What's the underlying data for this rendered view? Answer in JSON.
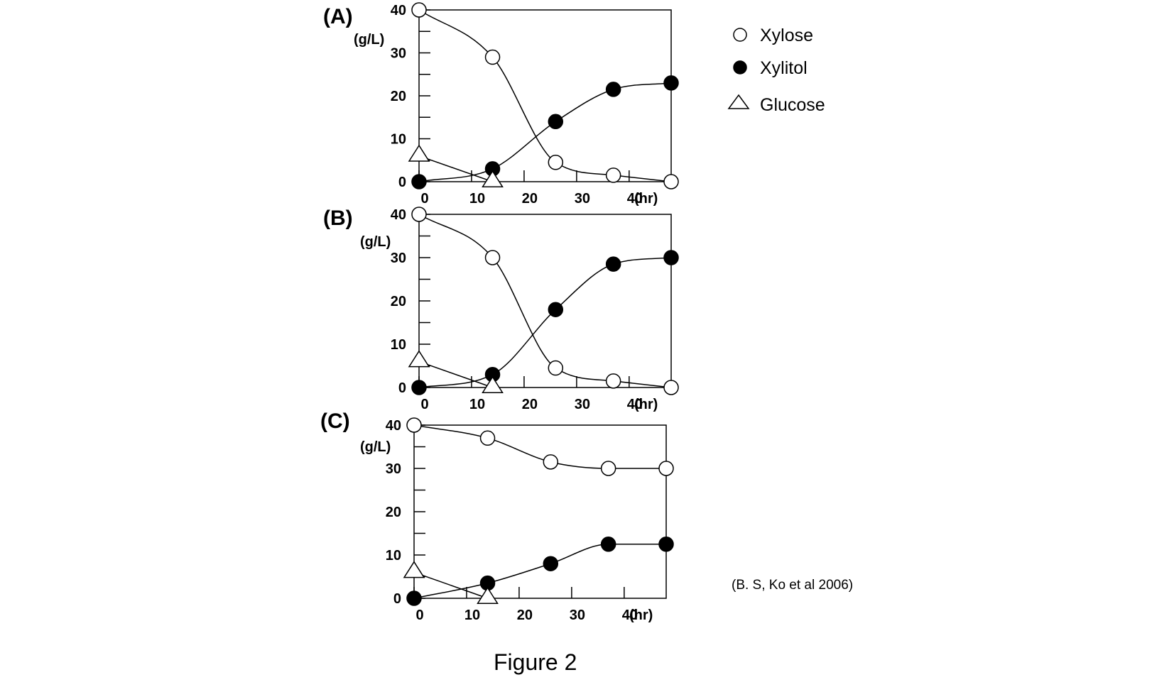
{
  "figure": {
    "caption": "Figure 2",
    "citation": "(B. S, Ko et al 2006)"
  },
  "legend": {
    "items": [
      {
        "label": "Xylose",
        "marker": "open-circle"
      },
      {
        "label": "Xylitol",
        "marker": "filled-circle"
      },
      {
        "label": "Glucose",
        "marker": "open-triangle"
      }
    ]
  },
  "colors": {
    "stroke": "#000000",
    "open_fill": "#ffffff",
    "filled_fill": "#000000"
  },
  "chart_data": [
    {
      "type": "line",
      "panel_label": "(A)",
      "ylabel": "(g/L)",
      "xlabel": "(hr)",
      "xlim": [
        0,
        48
      ],
      "ylim": [
        0,
        40
      ],
      "x_ticks": [
        0,
        10,
        20,
        30,
        40
      ],
      "y_ticks": [
        0,
        10,
        20,
        30,
        40
      ],
      "grid": false,
      "series": [
        {
          "name": "Xylose",
          "marker": "open-circle",
          "x": [
            0,
            14,
            26,
            37,
            48
          ],
          "y": [
            40,
            29,
            4.5,
            1.5,
            0
          ]
        },
        {
          "name": "Xylitol",
          "marker": "filled-circle",
          "x": [
            0,
            14,
            26,
            37,
            48
          ],
          "y": [
            0,
            3,
            14,
            21.5,
            23
          ]
        },
        {
          "name": "Glucose",
          "marker": "open-triangle",
          "x": [
            0,
            14
          ],
          "y": [
            6,
            0
          ]
        }
      ]
    },
    {
      "type": "line",
      "panel_label": "(B)",
      "ylabel": "(g/L)",
      "xlabel": "(hr)",
      "xlim": [
        0,
        48
      ],
      "ylim": [
        0,
        40
      ],
      "x_ticks": [
        0,
        10,
        20,
        30,
        40
      ],
      "y_ticks": [
        0,
        10,
        20,
        30,
        40
      ],
      "grid": false,
      "series": [
        {
          "name": "Xylose",
          "marker": "open-circle",
          "x": [
            0,
            14,
            26,
            37,
            48
          ],
          "y": [
            40,
            30,
            4.5,
            1.5,
            0
          ]
        },
        {
          "name": "Xylitol",
          "marker": "filled-circle",
          "x": [
            0,
            14,
            26,
            37,
            48
          ],
          "y": [
            0,
            3,
            18,
            28.5,
            30
          ]
        },
        {
          "name": "Glucose",
          "marker": "open-triangle",
          "x": [
            0,
            14
          ],
          "y": [
            6,
            0
          ]
        }
      ]
    },
    {
      "type": "line",
      "panel_label": "(C)",
      "ylabel": "(g/L)",
      "xlabel": "(hr)",
      "xlim": [
        0,
        48
      ],
      "ylim": [
        0,
        40
      ],
      "x_ticks": [
        0,
        10,
        20,
        30,
        40
      ],
      "y_ticks": [
        0,
        10,
        20,
        30,
        40
      ],
      "grid": false,
      "series": [
        {
          "name": "Xylose",
          "marker": "open-circle",
          "x": [
            0,
            14,
            26,
            37,
            48
          ],
          "y": [
            40,
            37,
            31.5,
            30,
            30
          ]
        },
        {
          "name": "Xylitol",
          "marker": "filled-circle",
          "x": [
            0,
            14,
            26,
            37,
            48
          ],
          "y": [
            0,
            3.5,
            8,
            12.5,
            12.5
          ]
        },
        {
          "name": "Glucose",
          "marker": "open-triangle",
          "x": [
            0,
            14
          ],
          "y": [
            6,
            0
          ]
        }
      ]
    }
  ]
}
